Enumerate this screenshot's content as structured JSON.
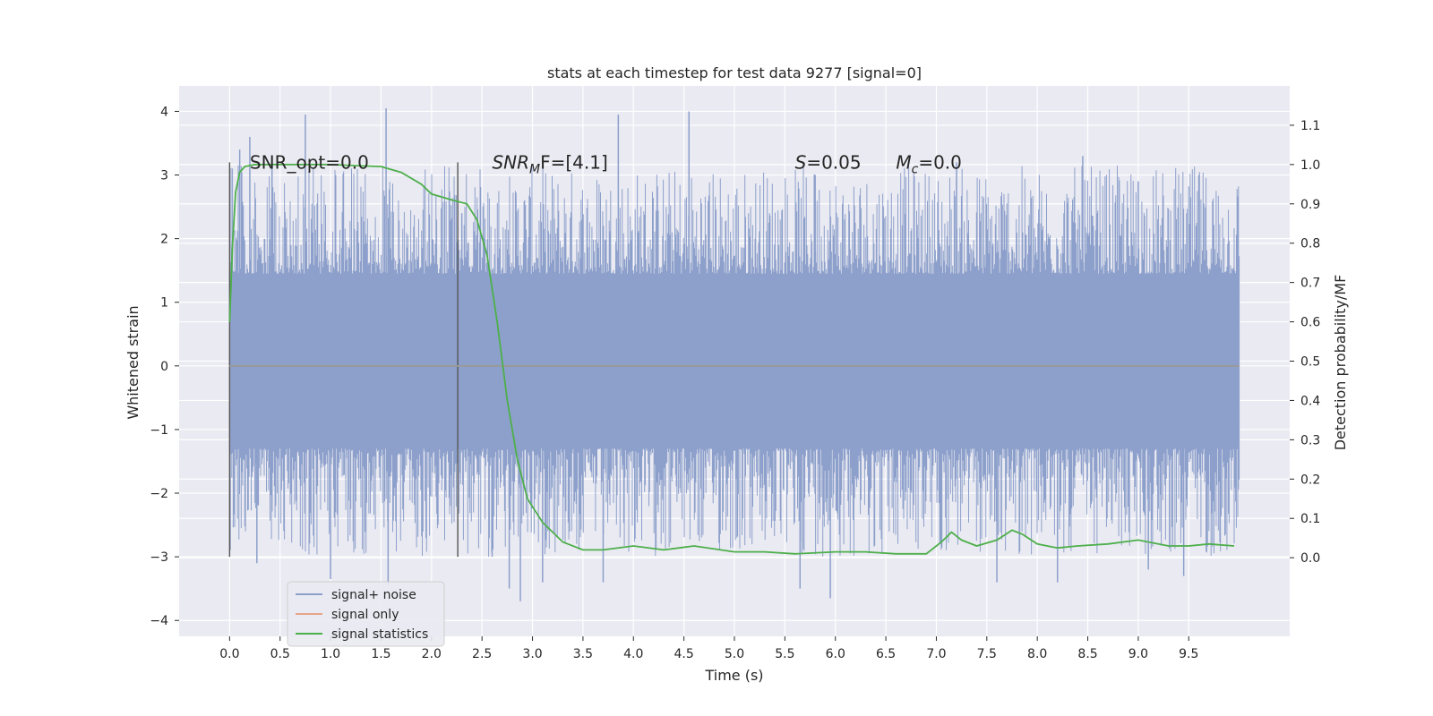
{
  "chart_data": {
    "type": "line",
    "title": "stats at each timestep for test data 9277 [signal=0]",
    "xlabel": "Time (s)",
    "ylabel": "Whitened strain",
    "ylabel_right": "Detection probability/MF",
    "xlim": [
      -0.5,
      10.5
    ],
    "ylim": [
      -4.25,
      4.4
    ],
    "ylim_right": [
      -0.2,
      1.2
    ],
    "x_ticks": [
      0.0,
      0.5,
      1.0,
      1.5,
      2.0,
      2.5,
      3.0,
      3.5,
      4.0,
      4.5,
      5.0,
      5.5,
      6.0,
      6.5,
      7.0,
      7.5,
      8.0,
      8.5,
      9.0,
      9.5
    ],
    "x_tick_labels": [
      "0.0",
      "0.5",
      "1.0",
      "1.5",
      "2.0",
      "2.5",
      "3.0",
      "3.5",
      "4.0",
      "4.5",
      "5.0",
      "5.5",
      "6.0",
      "6.5",
      "7.0",
      "7.5",
      "8.0",
      "8.5",
      "9.0",
      "9.5"
    ],
    "y_ticks": [
      -4,
      -3,
      -2,
      -1,
      0,
      1,
      2,
      3,
      4
    ],
    "y_tick_labels": [
      "−4",
      "−3",
      "−2",
      "−1",
      "0",
      "1",
      "2",
      "3",
      "4"
    ],
    "y_ticks_right": [
      0.0,
      0.1,
      0.2,
      0.3,
      0.4,
      0.5,
      0.6,
      0.7,
      0.8,
      0.9,
      1.0,
      1.1
    ],
    "y_tick_labels_right": [
      "0.0",
      "0.1",
      "0.2",
      "0.3",
      "0.4",
      "0.5",
      "0.6",
      "0.7",
      "0.8",
      "0.9",
      "1.0",
      "1.1"
    ],
    "grid": true,
    "legend_position": "bottom-left",
    "annotations": [
      {
        "text": "SNR_opt=0.0",
        "x": 0.2,
        "y": 3.2
      },
      {
        "text_main": "SNR",
        "text_sub": "M",
        "text_rest": "F=[4.1]",
        "x": 2.6,
        "y": 3.2
      },
      {
        "text_main": "S",
        "text_rest": "=0.05",
        "x": 5.6,
        "y": 3.2
      },
      {
        "text_main": "M",
        "text_sub": "c",
        "text_rest": "=0.0",
        "x": 6.6,
        "y": 3.2
      }
    ],
    "vertical_markers": [
      {
        "x": 0.0,
        "y_from": -3.0,
        "y_to": 3.2
      },
      {
        "x": 2.26,
        "y_from": -3.0,
        "y_to": 3.2
      }
    ],
    "series": [
      {
        "name": "signal+ noise",
        "color": "#8da0cb",
        "kind": "noise",
        "x_range": [
          0.0,
          10.0
        ],
        "core_band": [
          -1.2,
          1.35
        ],
        "approx_peak_max": 4.05,
        "approx_peak_min": -3.7,
        "notable_peaks": [
          {
            "x": 0.1,
            "y": 3.4
          },
          {
            "x": 0.2,
            "y": 3.6
          },
          {
            "x": 0.42,
            "y": 3.2
          },
          {
            "x": 0.75,
            "y": 3.95
          },
          {
            "x": 1.05,
            "y": 3.0
          },
          {
            "x": 1.55,
            "y": 4.05
          },
          {
            "x": 2.3,
            "y": 2.4
          },
          {
            "x": 3.85,
            "y": 3.95
          },
          {
            "x": 4.55,
            "y": 4.0
          },
          {
            "x": 5.8,
            "y": 3.0
          },
          {
            "x": 7.2,
            "y": 3.2
          },
          {
            "x": 8.45,
            "y": 3.3
          },
          {
            "x": 9.0,
            "y": 2.9
          },
          {
            "x": 9.6,
            "y": 3.0
          },
          {
            "x": 0.27,
            "y": -3.1
          },
          {
            "x": 1.0,
            "y": -3.35
          },
          {
            "x": 1.57,
            "y": -3.45
          },
          {
            "x": 2.6,
            "y": -3.0
          },
          {
            "x": 2.77,
            "y": -3.5
          },
          {
            "x": 2.88,
            "y": -3.7
          },
          {
            "x": 3.1,
            "y": -3.4
          },
          {
            "x": 3.7,
            "y": -3.4
          },
          {
            "x": 5.65,
            "y": -3.5
          },
          {
            "x": 5.95,
            "y": -3.65
          },
          {
            "x": 7.6,
            "y": -3.4
          },
          {
            "x": 8.2,
            "y": -3.4
          },
          {
            "x": 9.1,
            "y": -3.2
          },
          {
            "x": 9.45,
            "y": -3.3
          }
        ]
      },
      {
        "name": "signal only",
        "color": "#e8a48a",
        "kind": "line",
        "axis": "left",
        "x": [
          0.0,
          10.0
        ],
        "y": [
          0.0,
          0.0
        ]
      },
      {
        "name": "signal statistics",
        "color": "#4daf4a",
        "kind": "line",
        "axis": "right",
        "x": [
          0.0,
          0.03,
          0.06,
          0.1,
          0.15,
          0.25,
          0.5,
          1.0,
          1.5,
          1.7,
          1.9,
          2.0,
          2.2,
          2.35,
          2.45,
          2.55,
          2.65,
          2.75,
          2.85,
          2.95,
          3.1,
          3.3,
          3.5,
          3.7,
          4.0,
          4.3,
          4.6,
          5.0,
          5.3,
          5.6,
          6.0,
          6.3,
          6.6,
          6.9,
          7.05,
          7.15,
          7.25,
          7.4,
          7.6,
          7.75,
          7.85,
          8.0,
          8.2,
          8.4,
          8.7,
          9.0,
          9.3,
          9.5,
          9.7,
          9.95
        ],
        "y": [
          0.6,
          0.8,
          0.93,
          0.98,
          0.995,
          1.0,
          1.0,
          1.0,
          0.995,
          0.98,
          0.95,
          0.925,
          0.91,
          0.9,
          0.86,
          0.77,
          0.6,
          0.4,
          0.25,
          0.15,
          0.09,
          0.04,
          0.02,
          0.02,
          0.03,
          0.02,
          0.03,
          0.015,
          0.015,
          0.01,
          0.015,
          0.015,
          0.01,
          0.01,
          0.04,
          0.065,
          0.045,
          0.03,
          0.045,
          0.07,
          0.06,
          0.035,
          0.025,
          0.03,
          0.035,
          0.045,
          0.03,
          0.03,
          0.035,
          0.03
        ]
      }
    ]
  }
}
